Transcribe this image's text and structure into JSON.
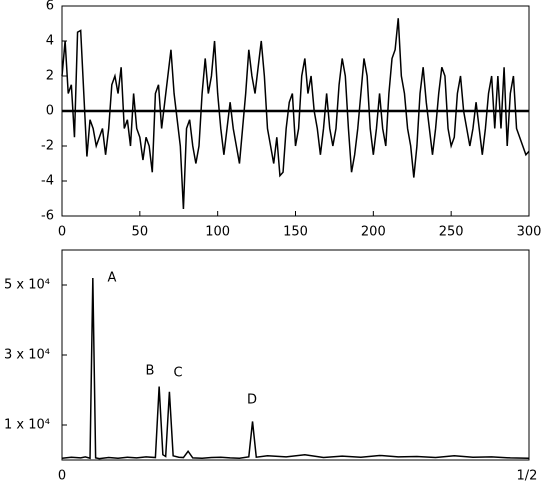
{
  "chart_data": [
    {
      "type": "line",
      "x": [
        0,
        2,
        4,
        6,
        8,
        10,
        12,
        14,
        16,
        18,
        20,
        22,
        24,
        26,
        28,
        30,
        32,
        34,
        36,
        38,
        40,
        42,
        44,
        46,
        48,
        50,
        52,
        54,
        56,
        58,
        60,
        62,
        64,
        66,
        68,
        70,
        72,
        74,
        76,
        78,
        80,
        82,
        84,
        86,
        88,
        90,
        92,
        94,
        96,
        98,
        100,
        102,
        104,
        106,
        108,
        110,
        112,
        114,
        116,
        118,
        120,
        122,
        124,
        126,
        128,
        130,
        132,
        134,
        136,
        138,
        140,
        142,
        144,
        146,
        148,
        150,
        152,
        154,
        156,
        158,
        160,
        162,
        164,
        166,
        168,
        170,
        172,
        174,
        176,
        178,
        180,
        182,
        184,
        186,
        188,
        190,
        192,
        194,
        196,
        198,
        200,
        202,
        204,
        206,
        208,
        210,
        212,
        214,
        216,
        218,
        220,
        222,
        224,
        226,
        228,
        230,
        232,
        234,
        236,
        238,
        240,
        242,
        244,
        246,
        248,
        250,
        252,
        254,
        256,
        258,
        260,
        262,
        264,
        266,
        268,
        270,
        272,
        274,
        276,
        278,
        280,
        282,
        284,
        286,
        288,
        290,
        292,
        294,
        296,
        298,
        300
      ],
      "series": [
        {
          "color": "#000000",
          "values": [
            2,
            4,
            1,
            1.5,
            -1.5,
            4.5,
            4.6,
            1,
            -2.6,
            -0.5,
            -1,
            -2,
            -1.5,
            -1,
            -2.5,
            -1,
            1.5,
            2,
            1,
            2.5,
            -1,
            -0.5,
            -2,
            1,
            -1,
            -1.5,
            -2.8,
            -1.5,
            -2,
            -3.5,
            1,
            1.5,
            -1,
            0.5,
            2,
            3.5,
            1,
            -0.5,
            -2,
            -5.6,
            -1,
            -0.5,
            -2,
            -3,
            -2,
            1,
            3,
            1,
            2,
            4,
            1,
            -1,
            -2.5,
            -1,
            0.5,
            -1,
            -2,
            -3,
            -1,
            1,
            3.5,
            2,
            1,
            2.5,
            4,
            2,
            -1,
            -2,
            -3,
            -1.5,
            -3.7,
            -3.5,
            -1,
            0.5,
            1,
            -2,
            -1,
            2,
            3,
            1,
            2,
            0,
            -1,
            -2.5,
            -1,
            1,
            -1,
            -2,
            -1,
            1.5,
            3,
            2,
            -1,
            -3.5,
            -2.5,
            -1,
            1,
            3,
            2,
            -1,
            -2.5,
            -1,
            1,
            -1,
            -2,
            1,
            3,
            3.5,
            5.3,
            2,
            1,
            -1,
            -2,
            -3.8,
            -2,
            1,
            2.5,
            0.5,
            -1,
            -2.5,
            -1,
            1,
            2.5,
            2,
            -1,
            -2,
            -1.5,
            1,
            2,
            0,
            -1,
            -2,
            -1,
            0.5,
            -1,
            -2.5,
            -1,
            1,
            2,
            -1,
            2,
            -1,
            2.5,
            -2,
            1,
            2,
            -1,
            -1.5,
            -2,
            -2.5,
            -2.3
          ]
        }
      ],
      "xlim": [
        0,
        300
      ],
      "xticks": [
        0,
        50,
        100,
        150,
        200,
        250,
        300
      ],
      "ylim": [
        -6,
        6
      ],
      "yticks": [
        -6,
        -4,
        -2,
        0,
        2,
        4,
        6
      ]
    },
    {
      "type": "line",
      "x": [
        0,
        0.01,
        0.02,
        0.025,
        0.03,
        0.033,
        0.036,
        0.04,
        0.05,
        0.06,
        0.07,
        0.08,
        0.09,
        0.1,
        0.104,
        0.108,
        0.111,
        0.115,
        0.119,
        0.125,
        0.13,
        0.135,
        0.14,
        0.15,
        0.16,
        0.17,
        0.18,
        0.19,
        0.2,
        0.204,
        0.208,
        0.22,
        0.24,
        0.26,
        0.28,
        0.3,
        0.32,
        0.34,
        0.36,
        0.38,
        0.4,
        0.42,
        0.44,
        0.46,
        0.48,
        0.5
      ],
      "series": [
        {
          "color": "#000000",
          "values": [
            500,
            800,
            600,
            900,
            500,
            52000,
            600,
            400,
            700,
            500,
            800,
            600,
            900,
            700,
            21000,
            1500,
            1000,
            19500,
            1200,
            800,
            700,
            2500,
            600,
            500,
            700,
            800,
            600,
            500,
            900,
            11000,
            800,
            1200,
            900,
            1500,
            700,
            1100,
            800,
            1300,
            900,
            1000,
            700,
            1200,
            800,
            900,
            600,
            500
          ]
        }
      ],
      "xlim": [
        0,
        0.5
      ],
      "xticks": [
        0,
        {
          "value": 0.5,
          "label": "1/2"
        }
      ],
      "ylim": [
        0,
        60000
      ],
      "yticks": [
        {
          "value": 10000,
          "label": "1 x 10⁴"
        },
        {
          "value": 30000,
          "label": "3 x 10⁴"
        },
        {
          "value": 50000,
          "label": "5 x 10⁴"
        }
      ],
      "annotations": [
        "A",
        "B",
        "C",
        "D"
      ]
    }
  ]
}
